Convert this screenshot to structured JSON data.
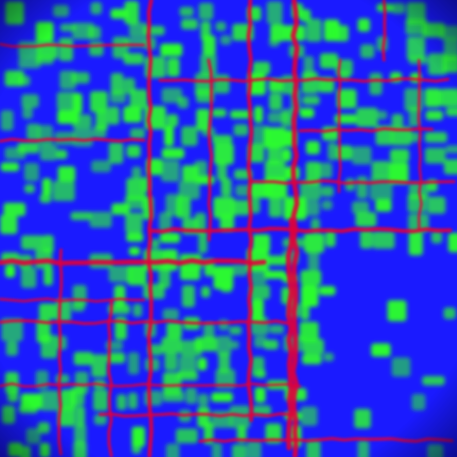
{
  "map": {
    "kind": "segmentation-heatmap",
    "legend_printed": false,
    "classes": [
      {
        "name": "background",
        "color": "#1a1aff"
      },
      {
        "name": "building",
        "color": "#2bff2b"
      },
      {
        "name": "road",
        "color": "#e0003a"
      }
    ],
    "edge_color": "#101040"
  }
}
